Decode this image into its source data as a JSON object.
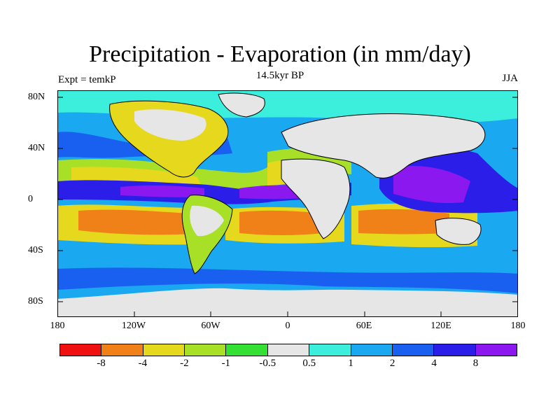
{
  "title": "Precipitation - Evaporation (in mm/day)",
  "subtitle_left": "Expt = temkP",
  "subtitle_center": "14.5kyr BP",
  "subtitle_right": "JJA",
  "y_ticks": [
    "80N",
    "40N",
    "0",
    "40S",
    "80S"
  ],
  "x_ticks": [
    "180",
    "120W",
    "60W",
    "0",
    "60E",
    "120E",
    "180"
  ],
  "legend": {
    "labels": [
      "-8",
      "-4",
      "-2",
      "-1",
      "-0.5",
      "0.5",
      "1",
      "2",
      "4",
      "8"
    ],
    "colors": [
      "#f01010",
      "#f08018",
      "#e6d81c",
      "#a8e028",
      "#34e034",
      "#e6e6e6",
      "#3ceedc",
      "#1aa8f0",
      "#1a60f0",
      "#2a1ee8",
      "#8c18f0"
    ]
  },
  "colors": {
    "land": "#e6e6e6",
    "dry_strong": "#f08018",
    "dry": "#e6d81c",
    "dry_light": "#a8e028",
    "dry_lightest": "#34e034",
    "wet_light": "#3ceedc",
    "wet": "#1aa8f0",
    "wetter": "#1a60f0",
    "wettest": "#2a1ee8",
    "extreme": "#8c18f0"
  }
}
